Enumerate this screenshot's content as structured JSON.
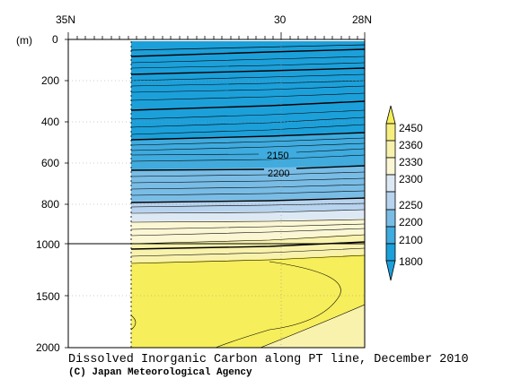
{
  "chart_data": {
    "type": "heatmap",
    "title": "Dissolved Inorganic Carbon along PT line, December 2010",
    "credit": "(C) Japan Meteorological Agency",
    "ylabel": "(m)",
    "x_ticks": [
      "35N",
      "30",
      "28N"
    ],
    "y_ticks": [
      "0",
      "200",
      "400",
      "600",
      "800",
      "1000",
      "1500",
      "2000"
    ],
    "contour_labels": [
      "2150",
      "2200"
    ],
    "colorbar": {
      "levels": [
        "2450",
        "2360",
        "2330",
        "2300",
        "2250",
        "2200",
        "2100",
        "1800"
      ],
      "colors": [
        "#f6ee5a",
        "#f6ee7e",
        "#f8f2ad",
        "#fbf7d5",
        "#dce9f5",
        "#b7d3ee",
        "#79bde6",
        "#3fabde",
        "#1ca0da"
      ]
    }
  }
}
